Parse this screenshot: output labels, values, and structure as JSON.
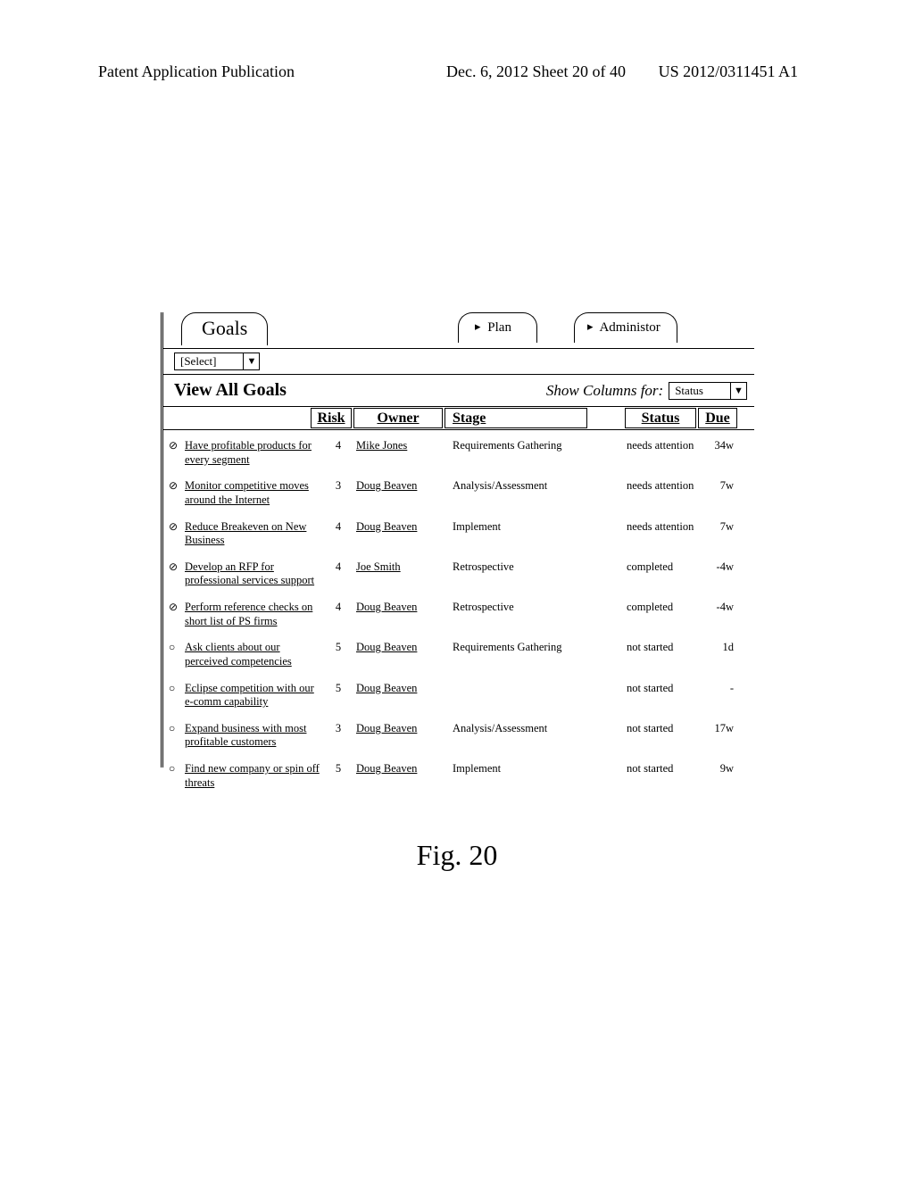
{
  "page_header": {
    "left": "Patent Application Publication",
    "middle": "Dec. 6, 2012  Sheet 20 of 40",
    "right": "US 2012/0311451 A1"
  },
  "tabs": {
    "goals": "Goals",
    "plan": "Plan",
    "admin": "Administor",
    "triangle": "▸"
  },
  "select": {
    "text": "[Select]",
    "arrow": "▼"
  },
  "view": {
    "title": "View All Goals",
    "show_label": "Show Columns for:",
    "show_value": "Status",
    "show_arrow": "▼"
  },
  "columns": {
    "risk": "Risk",
    "owner": "Owner",
    "stage": "Stage",
    "status": "Status",
    "due": "Due"
  },
  "icons": {
    "not_allowed": "⊘",
    "slash": "⊘",
    "open": "○"
  },
  "rows": [
    {
      "icon": "⊘",
      "name": "Have profitable products for every segment",
      "risk": "4",
      "owner": "Mike Jones",
      "stage": "Requirements Gathering",
      "status": "needs attention",
      "due": "34w"
    },
    {
      "icon": "⊘",
      "name": "Monitor competitive moves around the Internet",
      "risk": "3",
      "owner": "Doug Beaven",
      "stage": "Analysis/Assessment",
      "status": "needs attention",
      "due": "7w"
    },
    {
      "icon": "⊘",
      "name": "Reduce Breakeven on New Business",
      "risk": "4",
      "owner": "Doug Beaven",
      "stage": "Implement",
      "status": "needs attention",
      "due": "7w"
    },
    {
      "icon": "⊘",
      "name": "Develop an RFP for professional services support",
      "risk": "4",
      "owner": "Joe Smith",
      "stage": "Retrospective",
      "status": "completed",
      "due": "-4w"
    },
    {
      "icon": "⊘",
      "name": "Perform reference checks on short list of PS firms",
      "risk": "4",
      "owner": "Doug Beaven",
      "stage": "Retrospective",
      "status": "completed",
      "due": "-4w"
    },
    {
      "icon": "○",
      "name": "Ask clients about our perceived competencies",
      "risk": "5",
      "owner": "Doug Beaven",
      "stage": "Requirements Gathering",
      "status": "not started",
      "due": "1d"
    },
    {
      "icon": "○",
      "name": "Eclipse competition with our e-comm capability",
      "risk": "5",
      "owner": "Doug Beaven",
      "stage": "",
      "status": "not started",
      "due": "-"
    },
    {
      "icon": "○",
      "name": "Expand business with most profitable customers",
      "risk": "3",
      "owner": "Doug Beaven",
      "stage": "Analysis/Assessment",
      "status": "not started",
      "due": "17w"
    },
    {
      "icon": "○",
      "name": "Find new company or spin off threats",
      "risk": "5",
      "owner": "Doug Beaven",
      "stage": "Implement",
      "status": "not started",
      "due": "9w"
    }
  ],
  "caption": "Fig. 20"
}
